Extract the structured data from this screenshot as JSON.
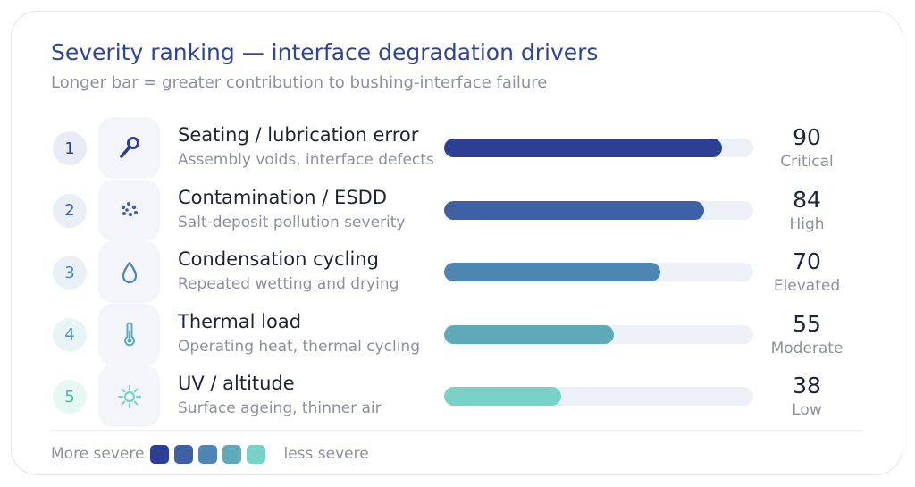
{
  "header": {
    "title": "Severity ranking — interface degradation drivers",
    "subtitle": "Longer bar = greater contribution to bushing-interface failure"
  },
  "chart_data": {
    "type": "bar",
    "orientation": "horizontal",
    "xlim": [
      0,
      100
    ],
    "categories": [
      "Seating / lubrication error",
      "Contamination / ESDD",
      "Condensation cycling",
      "Thermal load",
      "UV / altitude"
    ],
    "values": [
      90,
      84,
      70,
      55,
      38
    ],
    "rows": [
      {
        "rank": "1",
        "label": "Seating / lubrication error",
        "description": "Assembly voids, interface defects",
        "value": 90,
        "value_label": "90",
        "severity": "Critical",
        "color": "#2b3f94",
        "icon": "wrench-icon",
        "badge_bg": "#e9ecf6",
        "badge_color": "#2b3f94"
      },
      {
        "rank": "2",
        "label": "Contamination / ESDD",
        "description": "Salt-deposit pollution severity",
        "value": 84,
        "value_label": "84",
        "severity": "High",
        "color": "#3e61a6",
        "icon": "particles-icon",
        "badge_bg": "#eaeef7",
        "badge_color": "#3e61a6"
      },
      {
        "rank": "3",
        "label": "Condensation cycling",
        "description": "Repeated wetting and drying",
        "value": 70,
        "value_label": "70",
        "severity": "Elevated",
        "color": "#4d86b3",
        "icon": "droplet-icon",
        "badge_bg": "#e9f1f7",
        "badge_color": "#4d86b3"
      },
      {
        "rank": "4",
        "label": "Thermal load",
        "description": "Operating heat, thermal cycling",
        "value": 55,
        "value_label": "55",
        "severity": "Moderate",
        "color": "#5eaab8",
        "icon": "thermometer-icon",
        "badge_bg": "#e8f4f5",
        "badge_color": "#4f9aa8"
      },
      {
        "rank": "5",
        "label": "UV / altitude",
        "description": "Surface ageing, thinner air",
        "value": 38,
        "value_label": "38",
        "severity": "Low",
        "color": "#77d3c6",
        "icon": "sun-icon",
        "badge_bg": "#e7f7f4",
        "badge_color": "#4fb5a7"
      }
    ]
  },
  "legend": {
    "more_label": "More severe",
    "less_label": "less severe",
    "colors": [
      "#2b3f94",
      "#3e61a6",
      "#4d86b3",
      "#5eaab8",
      "#77d3c6"
    ]
  }
}
